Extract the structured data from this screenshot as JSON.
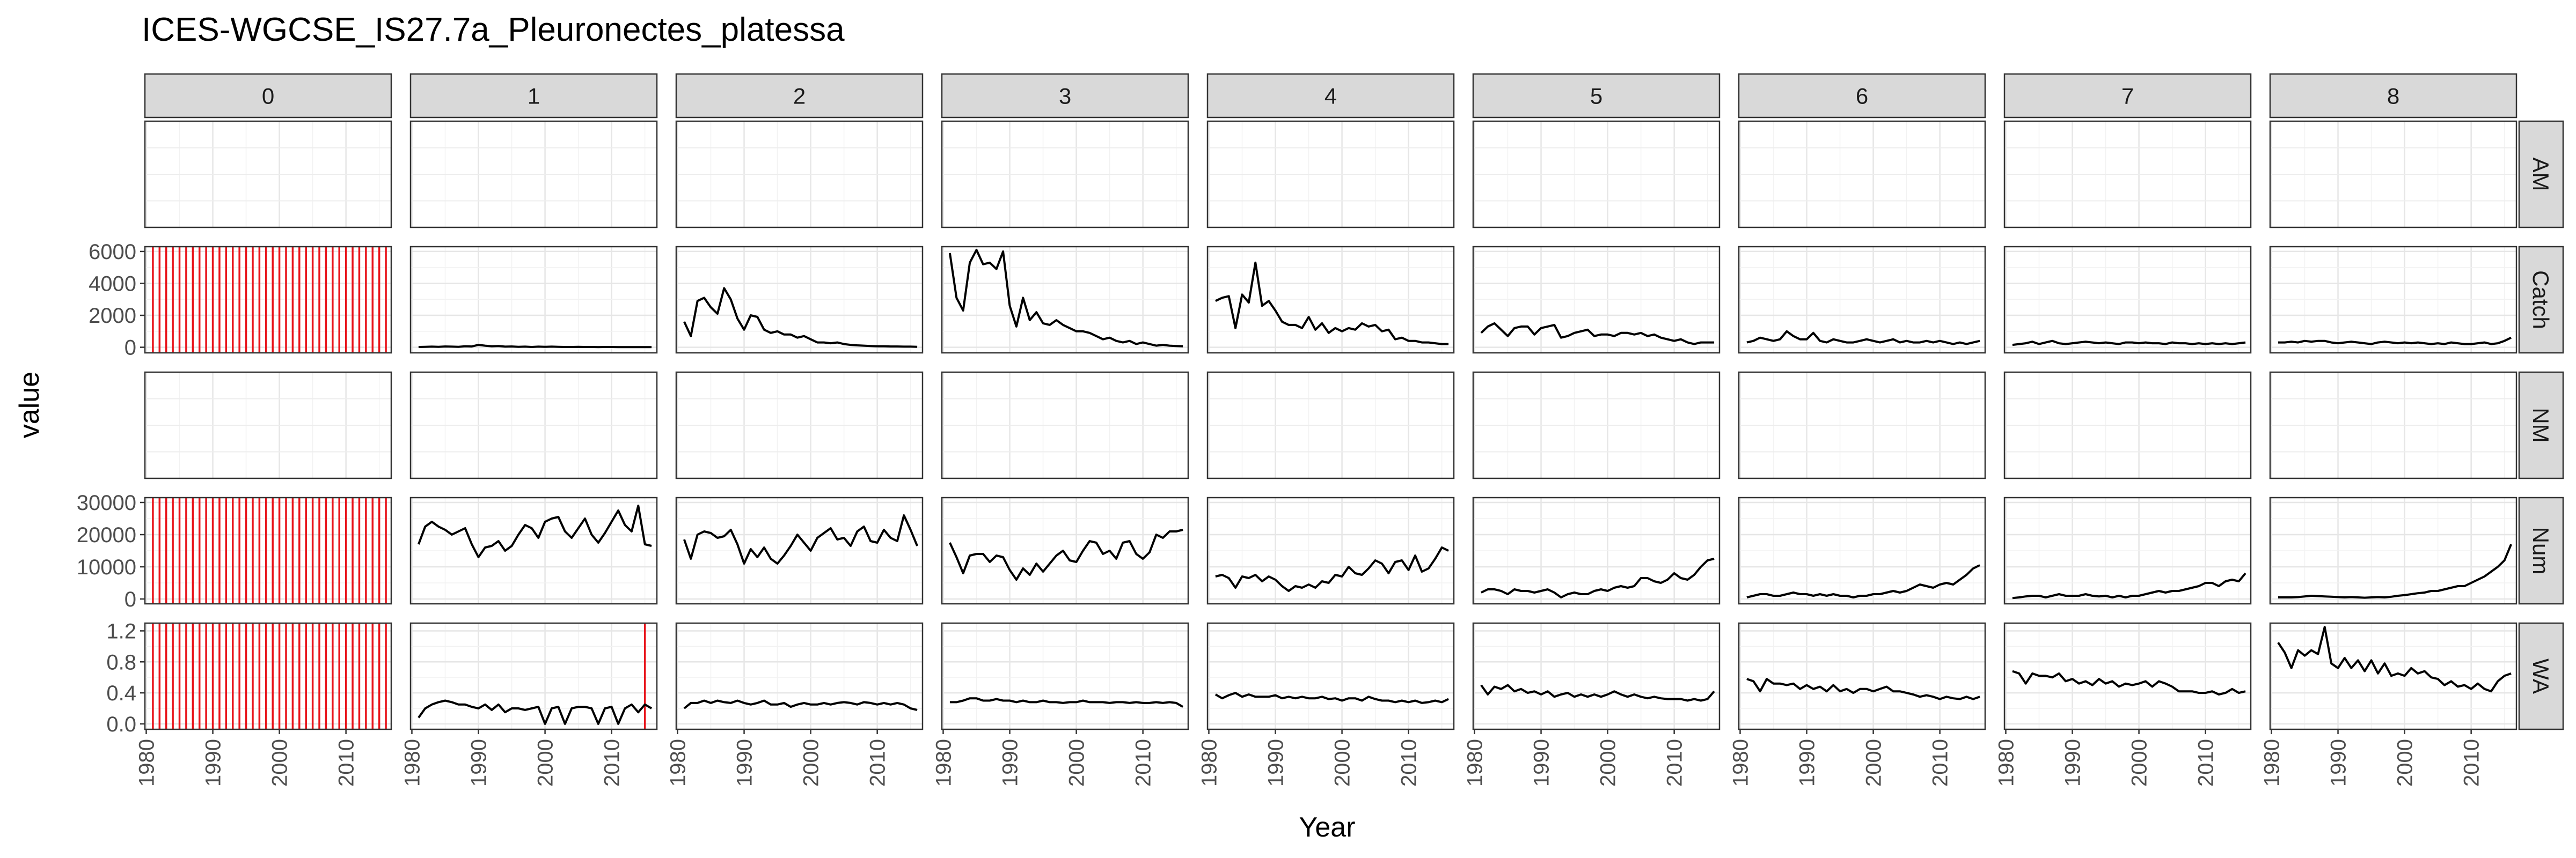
{
  "chart_data": {
    "type": "line",
    "title": "ICES-WGCSE_IS27.7a_Pleuronectes_platessa",
    "xlabel": "Year",
    "ylabel": "value",
    "ages": [
      "0",
      "1",
      "2",
      "3",
      "4",
      "5",
      "6",
      "7",
      "8"
    ],
    "grid": true,
    "x": {
      "lim": [
        1979.8,
        2016.8
      ],
      "ticks": [
        1980,
        1990,
        2000,
        2010
      ],
      "tick_labels": [
        "1980",
        "1990",
        "2000",
        "2010"
      ],
      "years": [
        1981,
        1982,
        1983,
        1984,
        1985,
        1986,
        1987,
        1988,
        1989,
        1990,
        1991,
        1992,
        1993,
        1994,
        1995,
        1996,
        1997,
        1998,
        1999,
        2000,
        2001,
        2002,
        2003,
        2004,
        2005,
        2006,
        2007,
        2008,
        2009,
        2010,
        2011,
        2012,
        2013,
        2014,
        2015,
        2016
      ]
    },
    "rows": [
      {
        "name": "AM",
        "ylim": [
          0,
          1
        ],
        "ticks": [],
        "tick_labels": []
      },
      {
        "name": "Catch",
        "ylim": [
          -350,
          6300
        ],
        "ticks": [
          0,
          2000,
          4000,
          6000
        ],
        "tick_labels": [
          "0",
          "2000",
          "4000",
          "6000"
        ]
      },
      {
        "name": "NM",
        "ylim": [
          0,
          1
        ],
        "ticks": [],
        "tick_labels": []
      },
      {
        "name": "Num",
        "ylim": [
          -1500,
          31500
        ],
        "ticks": [
          0,
          10000,
          20000,
          30000
        ],
        "tick_labels": [
          "0",
          "10000",
          "20000",
          "30000"
        ]
      },
      {
        "name": "WA",
        "ylim": [
          -0.07,
          1.3
        ],
        "ticks": [
          0.0,
          0.4,
          0.8,
          1.2
        ],
        "tick_labels": [
          "0.0",
          "0.4",
          "0.8",
          "1.2"
        ]
      }
    ],
    "missing_color": "#e8141b",
    "line_color": "#000000",
    "missing_markers": [
      {
        "row": "Catch",
        "age": "0",
        "years": "all"
      },
      {
        "row": "Num",
        "age": "0",
        "years": "all"
      },
      {
        "row": "WA",
        "age": "0",
        "years": "all"
      },
      {
        "row": "WA",
        "age": "1",
        "years": [
          2015
        ]
      }
    ],
    "series": {
      "Catch": {
        "1": [
          20,
          30,
          40,
          30,
          50,
          40,
          30,
          60,
          50,
          150,
          100,
          60,
          80,
          40,
          50,
          30,
          40,
          20,
          40,
          30,
          40,
          30,
          20,
          20,
          30,
          20,
          20,
          10,
          20,
          20,
          10,
          10,
          10,
          10,
          10,
          10
        ],
        "2": [
          1600,
          700,
          2900,
          3100,
          2500,
          2100,
          3700,
          3000,
          1800,
          1100,
          2000,
          1900,
          1100,
          900,
          1000,
          800,
          800,
          600,
          700,
          500,
          300,
          300,
          250,
          300,
          200,
          150,
          120,
          100,
          80,
          60,
          60,
          50,
          50,
          40,
          40,
          30
        ],
        "3": [
          5900,
          3100,
          2300,
          5300,
          6100,
          5200,
          5300,
          4900,
          6000,
          2600,
          1300,
          3100,
          1700,
          2200,
          1500,
          1400,
          1700,
          1400,
          1200,
          1000,
          1000,
          900,
          700,
          500,
          600,
          400,
          300,
          400,
          200,
          300,
          200,
          100,
          150,
          100,
          80,
          60
        ],
        "4": [
          2900,
          3100,
          3200,
          1200,
          3300,
          2800,
          5300,
          2600,
          2900,
          2300,
          1600,
          1400,
          1400,
          1200,
          1900,
          1100,
          1500,
          900,
          1200,
          1000,
          1200,
          1100,
          1500,
          1300,
          1400,
          1000,
          1100,
          500,
          600,
          400,
          400,
          300,
          300,
          250,
          200,
          200
        ],
        "5": [
          900,
          1300,
          1500,
          1100,
          700,
          1200,
          1300,
          1300,
          800,
          1200,
          1300,
          1400,
          600,
          700,
          900,
          1000,
          1100,
          700,
          800,
          800,
          700,
          900,
          900,
          800,
          900,
          700,
          800,
          600,
          500,
          400,
          500,
          300,
          200,
          300,
          300,
          300
        ],
        "6": [
          300,
          400,
          600,
          500,
          400,
          500,
          1000,
          700,
          500,
          500,
          900,
          400,
          300,
          500,
          400,
          300,
          300,
          400,
          500,
          400,
          300,
          400,
          500,
          300,
          400,
          300,
          300,
          400,
          300,
          400,
          300,
          200,
          300,
          200,
          300,
          400
        ],
        "7": [
          150,
          200,
          250,
          350,
          200,
          300,
          400,
          250,
          200,
          250,
          300,
          350,
          300,
          250,
          300,
          250,
          200,
          300,
          300,
          250,
          300,
          250,
          250,
          200,
          300,
          250,
          250,
          200,
          250,
          200,
          250,
          200,
          250,
          200,
          250,
          300
        ],
        "8": [
          300,
          300,
          350,
          300,
          400,
          350,
          400,
          400,
          300,
          250,
          300,
          350,
          300,
          250,
          200,
          300,
          350,
          300,
          250,
          300,
          250,
          300,
          250,
          200,
          250,
          200,
          300,
          250,
          200,
          200,
          250,
          300,
          200,
          250,
          400,
          600
        ]
      },
      "Num": {
        "1": [
          17000,
          22500,
          24000,
          22500,
          21500,
          20000,
          21000,
          22000,
          17000,
          13000,
          16000,
          16500,
          18000,
          15000,
          16500,
          20000,
          23000,
          22000,
          19000,
          24000,
          25000,
          25500,
          21000,
          19000,
          22000,
          25000,
          20000,
          17500,
          20500,
          24000,
          27500,
          23000,
          21000,
          29000,
          17000,
          16500
        ],
        "2": [
          18500,
          12500,
          20000,
          21000,
          20500,
          19000,
          19500,
          21500,
          17000,
          11000,
          15500,
          13000,
          16000,
          12500,
          11000,
          13500,
          16500,
          20000,
          17500,
          15000,
          19000,
          20500,
          22000,
          18500,
          19000,
          16500,
          21000,
          22500,
          18000,
          17500,
          21500,
          19000,
          18000,
          26000,
          21500,
          16500
        ],
        "3": [
          17500,
          13000,
          8000,
          13500,
          14000,
          14000,
          11500,
          13500,
          13000,
          9000,
          6000,
          9500,
          7500,
          11000,
          8500,
          11000,
          13500,
          15000,
          12000,
          11500,
          15000,
          18000,
          17500,
          14000,
          15000,
          12500,
          17500,
          18000,
          14000,
          12500,
          14500,
          20000,
          19000,
          21000,
          21000,
          21500
        ],
        "4": [
          7000,
          7500,
          6500,
          3500,
          7000,
          6500,
          7500,
          5500,
          7000,
          6000,
          4000,
          2500,
          4000,
          3500,
          4500,
          3500,
          5500,
          5000,
          7500,
          7000,
          10000,
          8000,
          7500,
          9500,
          12000,
          11000,
          8000,
          11500,
          12000,
          9000,
          13500,
          8500,
          9500,
          12500,
          16000,
          15000
        ],
        "5": [
          2000,
          3000,
          3000,
          2500,
          1500,
          3000,
          2500,
          2500,
          2000,
          2500,
          3000,
          2000,
          500,
          1500,
          2000,
          1500,
          1500,
          2500,
          3000,
          2500,
          3500,
          4000,
          3500,
          4000,
          6500,
          6500,
          5500,
          5000,
          6000,
          8000,
          6500,
          6000,
          7500,
          10000,
          12000,
          12500
        ],
        "6": [
          500,
          1000,
          1500,
          1500,
          1000,
          1000,
          1500,
          2000,
          1500,
          1500,
          1000,
          1500,
          1000,
          1500,
          1000,
          1000,
          500,
          1000,
          1000,
          1500,
          1500,
          2000,
          2500,
          2000,
          2500,
          3500,
          4500,
          4000,
          3500,
          4500,
          5000,
          4500,
          6000,
          7500,
          9500,
          10500
        ],
        "7": [
          300,
          500,
          800,
          1000,
          1000,
          500,
          1000,
          1500,
          1000,
          1000,
          1000,
          1500,
          1000,
          800,
          1000,
          500,
          1000,
          500,
          1000,
          1000,
          1500,
          2000,
          2500,
          2000,
          2500,
          2500,
          3000,
          3500,
          4000,
          5000,
          5000,
          4000,
          5500,
          6000,
          5500,
          8000
        ],
        "8": [
          500,
          500,
          500,
          600,
          800,
          1000,
          900,
          800,
          700,
          600,
          500,
          600,
          500,
          400,
          500,
          600,
          500,
          700,
          1000,
          1200,
          1500,
          1800,
          2000,
          2500,
          2500,
          3000,
          3500,
          4000,
          4000,
          5000,
          6000,
          7000,
          8500,
          10000,
          12000,
          17000
        ]
      },
      "WA": {
        "1": [
          0.08,
          0.2,
          0.25,
          0.28,
          0.3,
          0.28,
          0.25,
          0.25,
          0.22,
          0.2,
          0.25,
          0.18,
          0.25,
          0.15,
          0.2,
          0.2,
          0.18,
          0.2,
          0.22,
          0.0,
          0.2,
          0.22,
          0.0,
          0.2,
          0.22,
          0.22,
          0.2,
          0.0,
          0.2,
          0.22,
          0.0,
          0.2,
          0.25,
          0.15,
          0.25,
          0.2
        ],
        "2": [
          0.2,
          0.27,
          0.27,
          0.3,
          0.27,
          0.3,
          0.28,
          0.27,
          0.3,
          0.27,
          0.25,
          0.27,
          0.3,
          0.25,
          0.25,
          0.27,
          0.22,
          0.25,
          0.27,
          0.25,
          0.25,
          0.27,
          0.25,
          0.27,
          0.28,
          0.27,
          0.25,
          0.28,
          0.27,
          0.25,
          0.27,
          0.25,
          0.27,
          0.25,
          0.2,
          0.18
        ],
        "3": [
          0.28,
          0.28,
          0.3,
          0.33,
          0.33,
          0.3,
          0.3,
          0.32,
          0.3,
          0.3,
          0.28,
          0.3,
          0.28,
          0.28,
          0.3,
          0.28,
          0.28,
          0.27,
          0.28,
          0.28,
          0.3,
          0.28,
          0.28,
          0.28,
          0.27,
          0.28,
          0.28,
          0.27,
          0.28,
          0.27,
          0.27,
          0.28,
          0.27,
          0.28,
          0.27,
          0.22
        ],
        "4": [
          0.38,
          0.33,
          0.37,
          0.4,
          0.35,
          0.38,
          0.35,
          0.35,
          0.35,
          0.37,
          0.33,
          0.35,
          0.33,
          0.35,
          0.33,
          0.33,
          0.35,
          0.32,
          0.33,
          0.3,
          0.33,
          0.33,
          0.3,
          0.35,
          0.32,
          0.3,
          0.3,
          0.28,
          0.3,
          0.28,
          0.3,
          0.27,
          0.28,
          0.3,
          0.28,
          0.32
        ],
        "5": [
          0.5,
          0.38,
          0.48,
          0.45,
          0.5,
          0.42,
          0.45,
          0.4,
          0.42,
          0.38,
          0.42,
          0.35,
          0.38,
          0.4,
          0.35,
          0.38,
          0.35,
          0.38,
          0.35,
          0.38,
          0.42,
          0.38,
          0.35,
          0.38,
          0.35,
          0.33,
          0.35,
          0.33,
          0.32,
          0.32,
          0.32,
          0.3,
          0.32,
          0.3,
          0.32,
          0.42
        ],
        "6": [
          0.58,
          0.55,
          0.42,
          0.58,
          0.52,
          0.52,
          0.5,
          0.52,
          0.45,
          0.5,
          0.45,
          0.48,
          0.42,
          0.5,
          0.42,
          0.45,
          0.4,
          0.45,
          0.45,
          0.42,
          0.45,
          0.48,
          0.42,
          0.42,
          0.4,
          0.38,
          0.35,
          0.37,
          0.35,
          0.32,
          0.35,
          0.33,
          0.32,
          0.35,
          0.32,
          0.35
        ],
        "7": [
          0.68,
          0.65,
          0.52,
          0.65,
          0.62,
          0.62,
          0.6,
          0.65,
          0.55,
          0.58,
          0.52,
          0.55,
          0.5,
          0.58,
          0.52,
          0.55,
          0.48,
          0.52,
          0.5,
          0.52,
          0.55,
          0.48,
          0.55,
          0.52,
          0.48,
          0.42,
          0.42,
          0.42,
          0.4,
          0.4,
          0.42,
          0.38,
          0.4,
          0.45,
          0.4,
          0.42
        ],
        "8": [
          1.05,
          0.92,
          0.72,
          0.95,
          0.88,
          0.95,
          0.9,
          1.25,
          0.78,
          0.72,
          0.85,
          0.72,
          0.82,
          0.68,
          0.82,
          0.65,
          0.78,
          0.62,
          0.65,
          0.62,
          0.72,
          0.65,
          0.68,
          0.6,
          0.58,
          0.5,
          0.55,
          0.48,
          0.5,
          0.45,
          0.52,
          0.45,
          0.42,
          0.55,
          0.62,
          0.65
        ]
      }
    }
  }
}
